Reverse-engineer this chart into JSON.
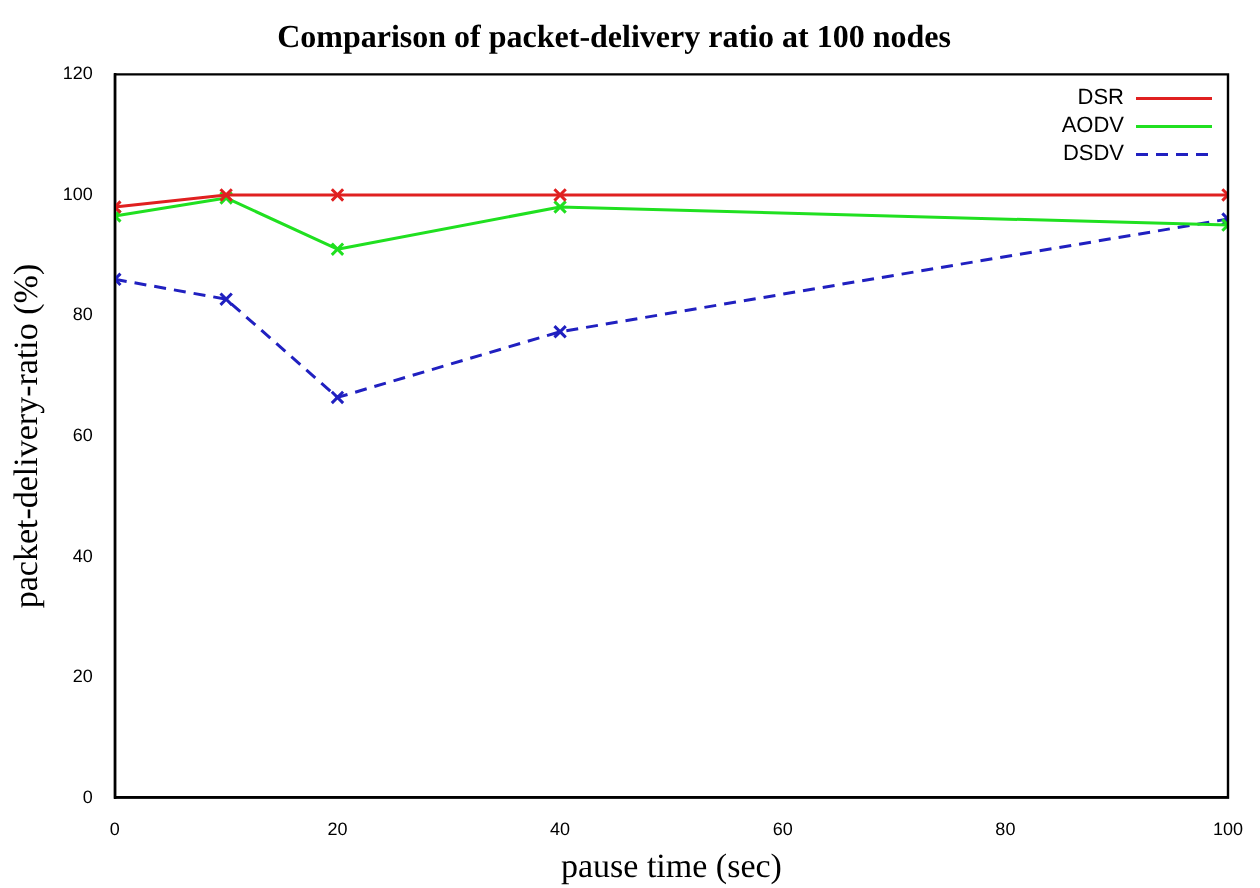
{
  "chart_data": {
    "type": "line",
    "title": "Comparison of packet-delivery ratio at 100 nodes",
    "xlabel": "pause time (sec)",
    "ylabel": "packet-delivery-ratio (%)",
    "xlim": [
      0,
      100
    ],
    "xticks": [
      0,
      20,
      40,
      60,
      80,
      100
    ],
    "ylim": [
      0,
      120
    ],
    "yticks": [
      0,
      20,
      40,
      60,
      80,
      100,
      120
    ],
    "grid": false,
    "legend": "top right",
    "series": [
      {
        "name": "DSR",
        "color": "#e02020",
        "x": [
          0,
          10,
          20,
          40,
          100
        ],
        "values": [
          98,
          100,
          100,
          100,
          100
        ],
        "marker": "cross",
        "line_style": "solid"
      },
      {
        "name": "AODV",
        "color": "#20e020",
        "x": [
          0,
          10,
          20,
          40,
          100
        ],
        "values": [
          96.5,
          99.5,
          91,
          98,
          95
        ],
        "marker": "cross",
        "line_style": "solid"
      },
      {
        "name": "DSDV",
        "color": "#2020c0",
        "x": [
          0,
          10,
          20,
          40,
          100
        ],
        "values": [
          86,
          82.7,
          66.4,
          77.3,
          96
        ],
        "marker": "cross",
        "line_style": "dashed"
      }
    ]
  }
}
